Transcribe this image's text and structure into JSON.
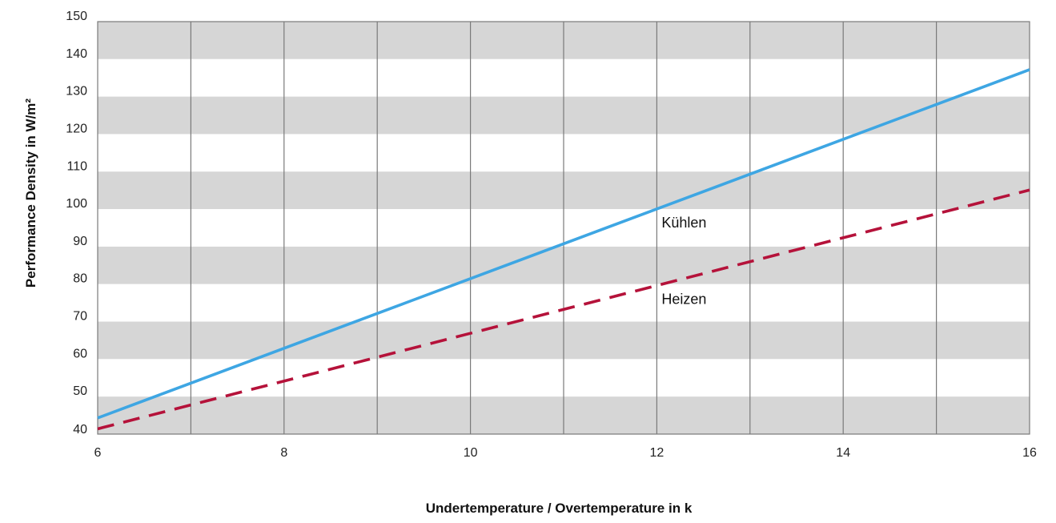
{
  "chart_data": {
    "type": "line",
    "title": "",
    "xlabel": "Undertemperature / Overtemperature in k",
    "ylabel": "Performance Density in W/m²",
    "xlim": [
      6,
      16
    ],
    "ylim": [
      40,
      150
    ],
    "x_ticks": [
      6,
      8,
      10,
      12,
      14,
      16
    ],
    "y_ticks": [
      40,
      50,
      60,
      70,
      80,
      90,
      100,
      110,
      120,
      130,
      140,
      150
    ],
    "x_grid_step": 1,
    "grid": "vertical lines, alternating gray horizontal bands",
    "legend": "inline labels",
    "series": [
      {
        "name": "Kühlen",
        "style": "solid",
        "color": "#3ea6e3",
        "x": [
          6,
          16
        ],
        "y": [
          44.3,
          137.2
        ]
      },
      {
        "name": "Heizen",
        "style": "dashed",
        "color": "#b5123a",
        "x": [
          6,
          16
        ],
        "y": [
          41.4,
          105.1
        ]
      }
    ],
    "band_colors": [
      "#d6d6d6",
      "#ffffff"
    ],
    "grid_line_color": "#7a7a7a",
    "frame_color": "#7a7a7a"
  }
}
